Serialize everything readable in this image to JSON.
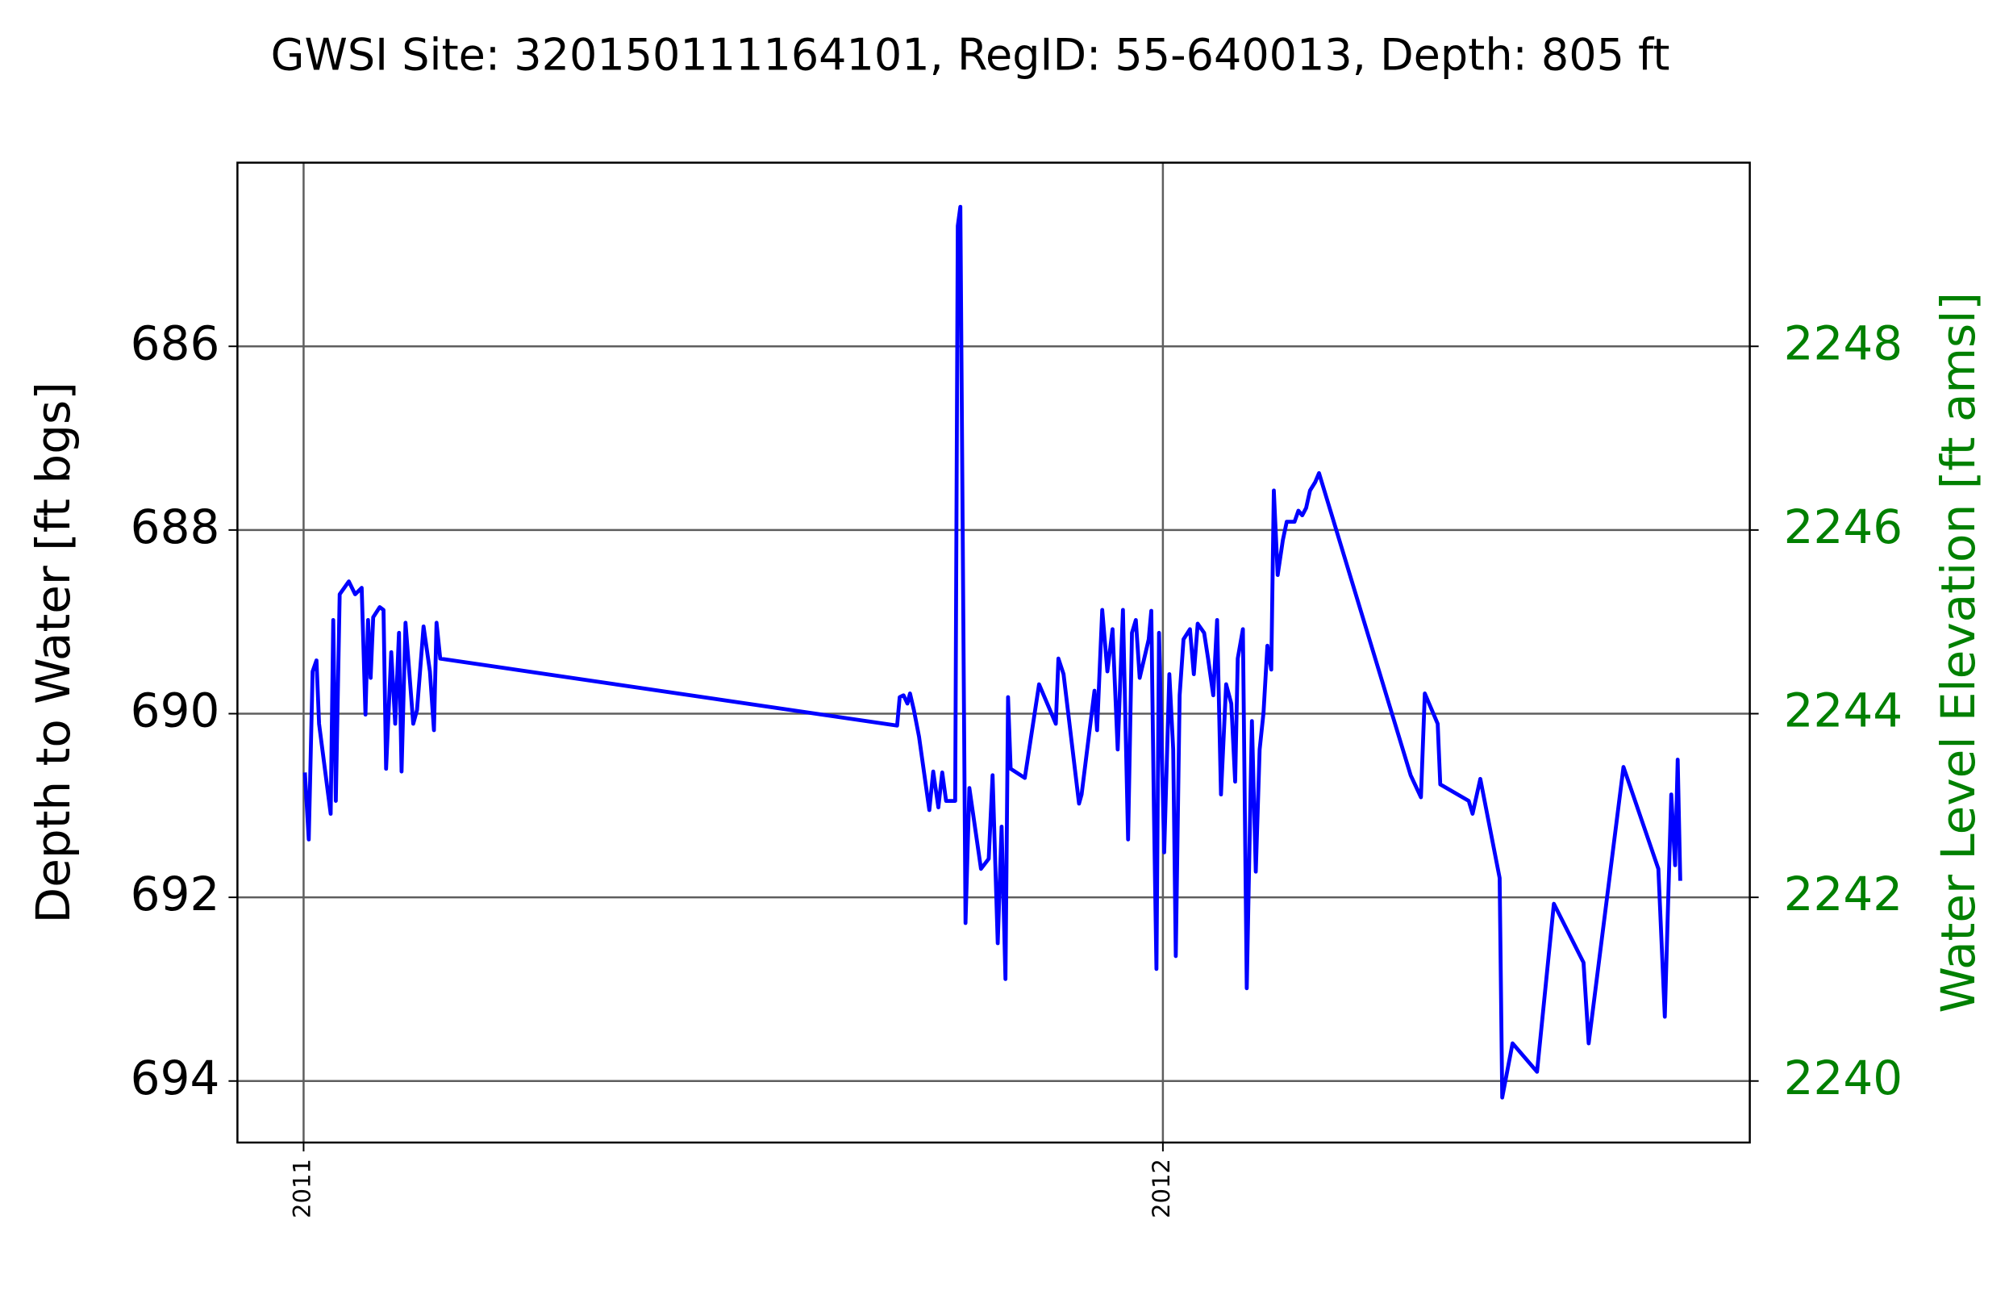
{
  "chart_data": {
    "type": "line",
    "title": "GWSI Site: 320150111164101, RegID: 55-640013, Depth: 805 ft",
    "ylabel": "Depth to Water [ft bgs]",
    "y2label": "Water Level Elevation [ft amsl]",
    "y2color": "#008000",
    "xlim": [
      2010.923,
      2012.683
    ],
    "xticks": [
      2011,
      2012
    ],
    "ylim": [
      684,
      694.67
    ],
    "yticks": [
      686,
      688,
      690,
      692,
      694
    ],
    "yaxis_inverted": true,
    "y2lim": [
      2239.33,
      2250
    ],
    "y2ticks": [
      2248,
      2246,
      2244,
      2242,
      2240
    ],
    "grid": true,
    "x": [
      2011.0015,
      2011.006,
      2011.0105,
      2011.015,
      2011.018,
      2011.0315,
      2011.0345,
      2011.0375,
      2011.042,
      2011.0526,
      2011.06,
      2011.0676,
      2011.072,
      2011.075,
      2011.078,
      2011.081,
      2011.0886,
      2011.093,
      2011.096,
      2011.102,
      2011.1066,
      2011.111,
      2011.114,
      2011.1186,
      2011.1276,
      2011.132,
      2011.1396,
      2011.147,
      2011.1517,
      2011.1547,
      2011.159,
      2011.6907,
      2011.6937,
      2011.6982,
      2011.7027,
      2011.7057,
      2011.7102,
      2011.7162,
      2011.7282,
      2011.7327,
      2011.7387,
      2011.7432,
      2011.7477,
      2011.7583,
      2011.7613,
      2011.7643,
      2011.7703,
      2011.7748,
      2011.7883,
      2011.7973,
      2011.8018,
      2011.8078,
      2011.8123,
      2011.8168,
      2011.8198,
      2011.8228,
      2011.8393,
      2011.8559,
      2011.8754,
      2011.8784,
      2011.8844,
      2011.9024,
      2011.9054,
      2011.9204,
      2011.9234,
      2011.9294,
      2011.9354,
      2011.9414,
      2011.9474,
      2011.9535,
      2011.9595,
      2011.964,
      2011.9685,
      2011.973,
      2011.9835,
      2011.9865,
      2011.9895,
      2011.9925,
      2011.9955,
      2012.0015,
      2012.0075,
      2012.012,
      2012.015,
      2012.0195,
      2012.024,
      2012.0315,
      2012.036,
      2012.0405,
      2012.048,
      2012.0526,
      2012.0586,
      2012.0631,
      2012.0676,
      2012.0736,
      2012.0796,
      2012.0841,
      2012.0871,
      2012.0931,
      2012.0976,
      2012.1036,
      2012.1081,
      2012.1126,
      2012.1171,
      2012.1216,
      2012.1261,
      2012.1291,
      2012.1336,
      2012.1396,
      2012.1441,
      2012.1532,
      2012.1577,
      2012.1622,
      2012.1667,
      2012.1712,
      2012.1772,
      2012.1817,
      2012.2883,
      2012.3003,
      2012.3048,
      2012.3198,
      2012.3228,
      2012.3559,
      2012.3604,
      2012.3694,
      2012.3919,
      2012.3949,
      2012.4069,
      2012.4354,
      2012.455,
      2012.4895,
      2012.4955,
      2012.536,
      2012.5766,
      2012.5841,
      2012.5916,
      2012.5961,
      2012.5991,
      2012.6021
    ],
    "series": [
      {
        "name": "Depth to Water",
        "color": "#0000ff",
        "values": [
          690.64,
          691.37,
          689.54,
          689.42,
          690.11,
          691.09,
          688.98,
          690.95,
          688.7,
          688.56,
          688.7,
          688.63,
          690.01,
          688.98,
          689.61,
          688.95,
          688.84,
          688.87,
          690.6,
          689.33,
          690.11,
          689.12,
          690.63,
          689.01,
          690.11,
          689.96,
          689.05,
          689.54,
          690.18,
          689.01,
          689.4,
          690.13,
          689.82,
          689.8,
          689.89,
          689.78,
          689.96,
          690.25,
          691.05,
          690.63,
          691.02,
          690.64,
          690.95,
          690.95,
          684.69,
          684.48,
          692.28,
          690.81,
          691.69,
          691.58,
          690.67,
          692.5,
          691.23,
          692.89,
          689.82,
          690.6,
          690.7,
          689.68,
          690.11,
          689.4,
          689.57,
          690.98,
          690.88,
          689.75,
          690.18,
          688.87,
          689.54,
          689.08,
          690.39,
          688.87,
          691.37,
          689.12,
          688.98,
          689.61,
          689.19,
          688.88,
          691.02,
          692.78,
          689.12,
          691.51,
          689.57,
          690.39,
          692.64,
          689.8,
          689.19,
          689.08,
          689.57,
          689.02,
          689.12,
          689.4,
          689.8,
          688.98,
          690.88,
          689.68,
          689.89,
          690.74,
          689.4,
          689.08,
          692.99,
          690.08,
          691.72,
          690.39,
          689.99,
          689.26,
          689.52,
          687.57,
          688.49,
          688.11,
          687.91,
          687.91,
          687.79,
          687.84,
          687.76,
          687.57,
          687.48,
          687.38,
          690.67,
          690.91,
          689.78,
          690.11,
          690.77,
          690.95,
          691.09,
          690.71,
          691.79,
          694.18,
          693.59,
          693.9,
          692.07,
          692.71,
          693.59,
          690.58,
          691.69,
          693.3,
          690.88,
          691.65,
          690.5,
          691.82
        ]
      }
    ]
  }
}
